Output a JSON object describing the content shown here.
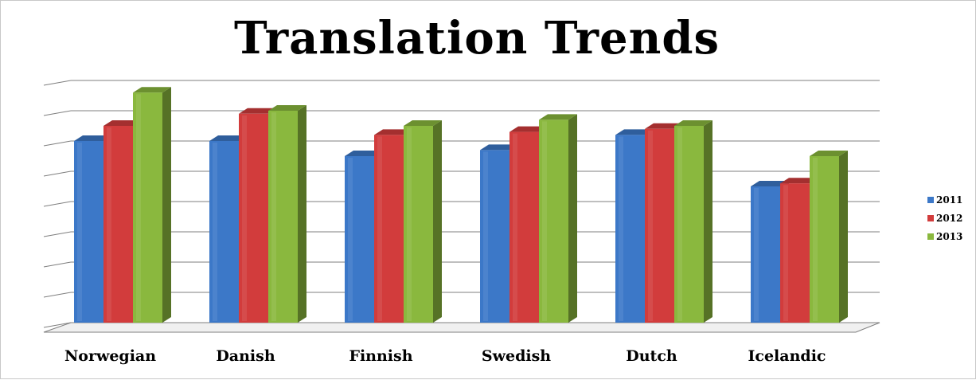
{
  "colors": {
    "s2011": "#3c78c8",
    "s2012": "#d23c3c",
    "s2013": "#8ab83e",
    "grid": "#7f7f7f"
  },
  "chart_data": {
    "type": "bar",
    "title": "Translation Trends",
    "categories": [
      "Norwegian",
      "Danish",
      "Finnish",
      "Swedish",
      "Dutch",
      "Icelandic"
    ],
    "series": [
      {
        "name": "2011",
        "values": [
          6.0,
          6.0,
          5.5,
          5.7,
          6.2,
          4.5
        ]
      },
      {
        "name": "2012",
        "values": [
          6.5,
          6.9,
          6.2,
          6.3,
          6.4,
          4.6
        ]
      },
      {
        "name": "2013",
        "values": [
          7.6,
          7.0,
          6.5,
          6.7,
          6.5,
          5.5
        ]
      }
    ],
    "ylim": [
      0,
      8
    ],
    "grid": true,
    "three_d": true,
    "legend_position": "right"
  }
}
